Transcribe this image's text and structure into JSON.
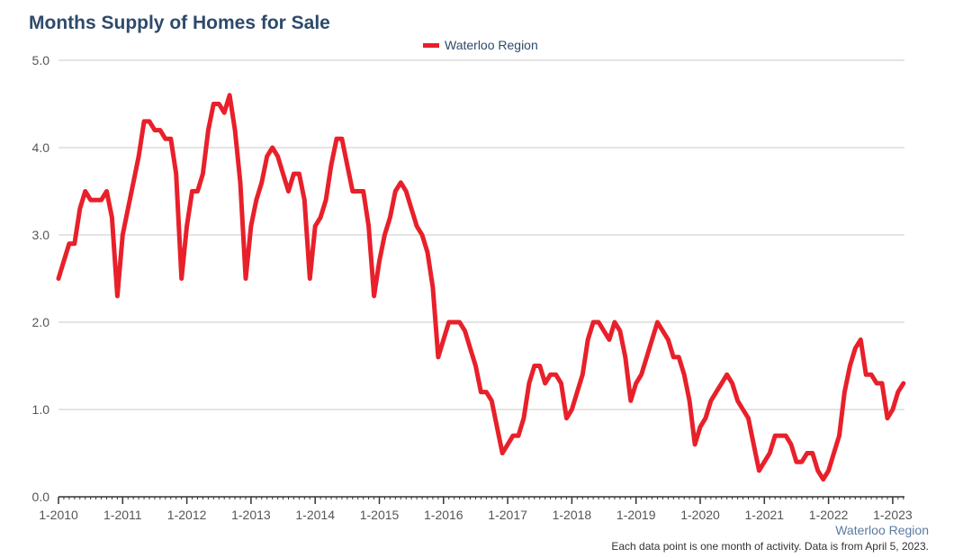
{
  "colors": {
    "series": "#e8202a",
    "grid": "#c8c8c8",
    "title": "#2e4a6b",
    "axis": "#555555"
  },
  "chart_data": {
    "type": "line",
    "title": "Months Supply of Homes for Sale",
    "xlabel": "",
    "ylabel": "",
    "ylim": [
      0,
      5
    ],
    "yticks": [
      "0.0",
      "1.0",
      "2.0",
      "3.0",
      "4.0",
      "5.0"
    ],
    "xticks": [
      "1-2010",
      "1-2011",
      "1-2012",
      "1-2013",
      "1-2014",
      "1-2015",
      "1-2016",
      "1-2017",
      "1-2018",
      "1-2019",
      "1-2020",
      "1-2021",
      "1-2022",
      "1-2023"
    ],
    "grid": true,
    "legend_position": "top-center",
    "series": [
      {
        "name": "Waterloo Region",
        "start": "2010-01",
        "values": [
          2.5,
          2.7,
          2.9,
          2.9,
          3.3,
          3.5,
          3.4,
          3.4,
          3.4,
          3.5,
          3.2,
          2.3,
          3.0,
          3.3,
          3.6,
          3.9,
          4.3,
          4.3,
          4.2,
          4.2,
          4.1,
          4.1,
          3.7,
          2.5,
          3.1,
          3.5,
          3.5,
          3.7,
          4.2,
          4.5,
          4.5,
          4.4,
          4.6,
          4.2,
          3.6,
          2.5,
          3.1,
          3.4,
          3.6,
          3.9,
          4.0,
          3.9,
          3.7,
          3.5,
          3.7,
          3.7,
          3.4,
          2.5,
          3.1,
          3.2,
          3.4,
          3.8,
          4.1,
          4.1,
          3.8,
          3.5,
          3.5,
          3.5,
          3.1,
          2.3,
          2.7,
          3.0,
          3.2,
          3.5,
          3.6,
          3.5,
          3.3,
          3.1,
          3.0,
          2.8,
          2.4,
          1.6,
          1.8,
          2.0,
          2.0,
          2.0,
          1.9,
          1.7,
          1.5,
          1.2,
          1.2,
          1.1,
          0.8,
          0.5,
          0.6,
          0.7,
          0.7,
          0.9,
          1.3,
          1.5,
          1.5,
          1.3,
          1.4,
          1.4,
          1.3,
          0.9,
          1.0,
          1.2,
          1.4,
          1.8,
          2.0,
          2.0,
          1.9,
          1.8,
          2.0,
          1.9,
          1.6,
          1.1,
          1.3,
          1.4,
          1.6,
          1.8,
          2.0,
          1.9,
          1.8,
          1.6,
          1.6,
          1.4,
          1.1,
          0.6,
          0.8,
          0.9,
          1.1,
          1.2,
          1.3,
          1.4,
          1.3,
          1.1,
          1.0,
          0.9,
          0.6,
          0.3,
          0.4,
          0.5,
          0.7,
          0.7,
          0.7,
          0.6,
          0.4,
          0.4,
          0.5,
          0.5,
          0.3,
          0.2,
          0.3,
          0.5,
          0.7,
          1.2,
          1.5,
          1.7,
          1.8,
          1.4,
          1.4,
          1.3,
          1.3,
          0.9,
          1.0,
          1.2,
          1.3
        ]
      }
    ]
  },
  "footer": {
    "source": "Waterloo Region",
    "note": "Each data point is one month of activity. Data is from April 5, 2023."
  }
}
